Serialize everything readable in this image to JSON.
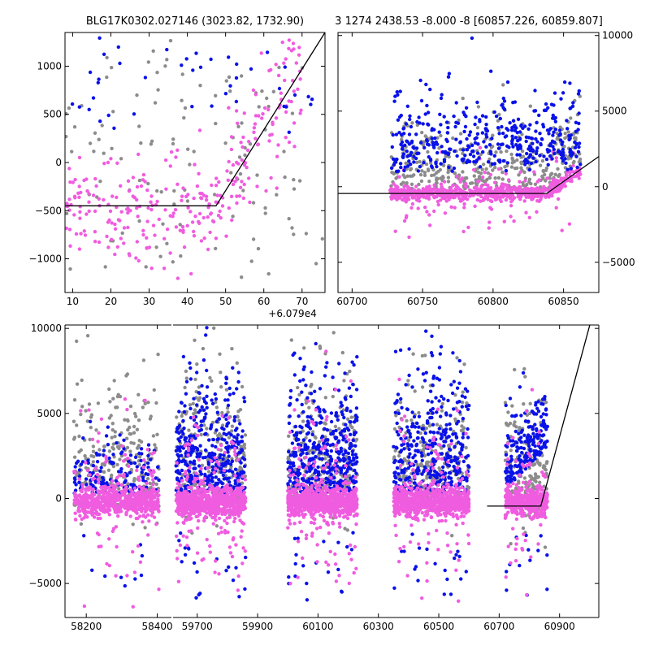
{
  "figure": {
    "left_title": "BLG17K0302.027146 (3023.82, 1732.90)",
    "right_title": "3 1274 2438.53 -8.000 -8 [60857.226, 60859.807]"
  },
  "colors": {
    "gray": "#8c8c8c",
    "blue": "#0a12e8",
    "magenta": "#f05ce0",
    "model": "#000000"
  },
  "chart_data": [
    {
      "id": "zoom",
      "type": "scatter",
      "title": "BLG17K0302.027146 (3023.82, 1732.90)",
      "x_offset_label": "+6.079e4",
      "xlim": [
        8,
        76
      ],
      "ylim": [
        -1350,
        1350
      ],
      "xticks": [
        10,
        20,
        30,
        40,
        50,
        60,
        70
      ],
      "xtick_labels": [
        "10",
        "20",
        "30",
        "40",
        "50",
        "60",
        "70"
      ],
      "yticks": [
        -1000,
        -500,
        0,
        500,
        1000
      ],
      "ytick_labels": [
        "−1000",
        "−500",
        "0",
        "500",
        "1000"
      ],
      "yaxis_side": "left",
      "model": {
        "x": [
          8,
          47.5,
          76
        ],
        "y": [
          -450,
          -450,
          1350
        ]
      },
      "series_style": [
        {
          "color_key": "gray",
          "count": 120
        },
        {
          "color_key": "magenta",
          "count": 300
        },
        {
          "color_key": "blue",
          "count": 45
        }
      ]
    },
    {
      "id": "season",
      "type": "scatter",
      "title": "3 1274 2438.53 -8.000 -8 [60857.226, 60859.807]",
      "xlim": [
        60690,
        60875
      ],
      "ylim": [
        -7000,
        10200
      ],
      "xticks": [
        60700,
        60750,
        60800,
        60850
      ],
      "xtick_labels": [
        "60700",
        "60750",
        "60800",
        "60850"
      ],
      "yticks": [
        -5000,
        0,
        5000,
        10000
      ],
      "ytick_labels": [
        "−5000",
        "0",
        "5000",
        "10000"
      ],
      "yaxis_side": "right",
      "model": {
        "x": [
          60690,
          60838,
          60875
        ],
        "y": [
          -450,
          -450,
          2000
        ]
      },
      "series_style": [
        {
          "color_key": "gray",
          "count": 380
        },
        {
          "color_key": "magenta",
          "count": 700
        },
        {
          "color_key": "blue",
          "count": 420
        }
      ]
    },
    {
      "id": "full",
      "type": "scatter",
      "xlim": [
        58140,
        61000
      ],
      "ylim": [
        -7000,
        10200
      ],
      "xticks": [
        58200,
        58400,
        59700,
        59900,
        60100,
        60300,
        60500,
        60700,
        60900
      ],
      "xtick_labels": [
        "58200",
        "58400",
        "59700",
        "59900",
        "60100",
        "60300",
        "60500",
        "60700",
        "60900"
      ],
      "yticks": [
        -5000,
        0,
        5000,
        10000
      ],
      "ytick_labels": [
        "−5000",
        "0",
        "5000",
        "10000"
      ],
      "yaxis_side": "left",
      "axis_break_segments": [
        {
          "x_range": [
            58140,
            58440
          ],
          "px_range": [
            80,
            211
          ]
        },
        {
          "x_range": [
            59620,
            61030
          ],
          "px_range": [
            213,
            737
          ]
        }
      ],
      "seasons": [
        {
          "x_range": [
            58165,
            58405
          ],
          "n_gray": 260,
          "n_magenta": 650,
          "n_blue": 150
        },
        {
          "x_range": [
            59630,
            59860
          ],
          "n_gray": 280,
          "n_magenta": 800,
          "n_blue": 420
        },
        {
          "x_range": [
            60000,
            60230
          ],
          "n_gray": 260,
          "n_magenta": 800,
          "n_blue": 460
        },
        {
          "x_range": [
            60350,
            60600
          ],
          "n_gray": 260,
          "n_magenta": 760,
          "n_blue": 420
        },
        {
          "x_range": [
            60720,
            60860
          ],
          "n_gray": 160,
          "n_magenta": 420,
          "n_blue": 220
        }
      ],
      "model": {
        "x": [
          60660,
          60838,
          61000
        ],
        "y": [
          -450,
          -450,
          10200
        ]
      }
    }
  ]
}
